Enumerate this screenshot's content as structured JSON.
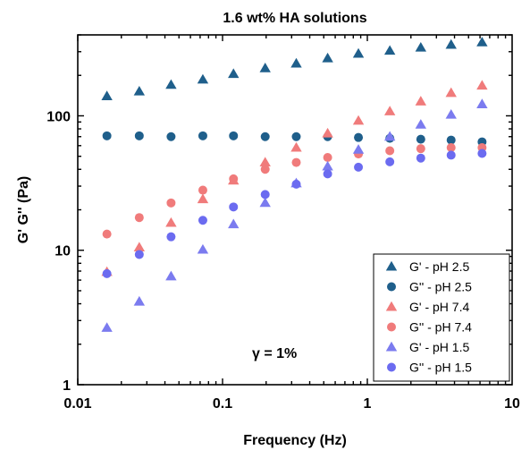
{
  "chart_data": {
    "type": "scatter",
    "title": "1.6 wt% HA solutions",
    "xlabel": "Frequency (Hz)",
    "ylabel": "G' G'' (Pa)",
    "xscale": "log",
    "yscale": "log",
    "xlim": [
      0.01,
      10
    ],
    "ylim": [
      1,
      400
    ],
    "x_ticks": [
      {
        "value": 0.01,
        "label": "0.01"
      },
      {
        "value": 0.1,
        "label": "0.1"
      },
      {
        "value": 1,
        "label": "1"
      },
      {
        "value": 10,
        "label": "10"
      }
    ],
    "y_ticks": [
      {
        "value": 1,
        "label": "1"
      },
      {
        "value": 10,
        "label": "10"
      },
      {
        "value": 100,
        "label": "100"
      }
    ],
    "grid": false,
    "legend_position": "bottom-right",
    "annotation": "γ = 1%",
    "x": [
      0.0159,
      0.0266,
      0.0441,
      0.0731,
      0.119,
      0.197,
      0.323,
      0.532,
      0.868,
      1.43,
      2.34,
      3.79,
      6.2
    ],
    "series": [
      {
        "name": "G' - pH 2.5",
        "marker": "triangle",
        "color": "#1f5f8b",
        "values": [
          140,
          152,
          170,
          186,
          205,
          226,
          245,
          268,
          290,
          305,
          322,
          338,
          352
        ]
      },
      {
        "name": "G'' - pH 2.5",
        "marker": "circle",
        "color": "#1f5f8b",
        "values": [
          71,
          71,
          70,
          71,
          71,
          70,
          70,
          70,
          69,
          68,
          67,
          66,
          64
        ]
      },
      {
        "name": "G' - pH 7.4",
        "marker": "triangle",
        "color": "#f07b7b",
        "values": [
          6.9,
          10.5,
          16,
          24,
          33,
          45,
          58,
          74,
          92,
          108,
          128,
          148,
          168
        ]
      },
      {
        "name": "G'' - pH 7.4",
        "marker": "circle",
        "color": "#f07b7b",
        "values": [
          13.2,
          17.5,
          22.5,
          28,
          34,
          40,
          45,
          49,
          52,
          55,
          57,
          58,
          58
        ]
      },
      {
        "name": "G' - pH 1.5",
        "marker": "triangle",
        "color": "#7b7bef",
        "values": [
          2.65,
          4.15,
          6.4,
          10.1,
          15.6,
          22.5,
          31.5,
          42,
          56,
          70,
          86,
          102,
          122
        ]
      },
      {
        "name": "G'' - pH 1.5",
        "marker": "circle",
        "color": "#6b6bf0",
        "values": [
          6.7,
          9.3,
          12.6,
          16.7,
          21,
          26,
          31,
          37,
          41.5,
          45.5,
          48.5,
          51,
          52.5
        ]
      }
    ]
  }
}
